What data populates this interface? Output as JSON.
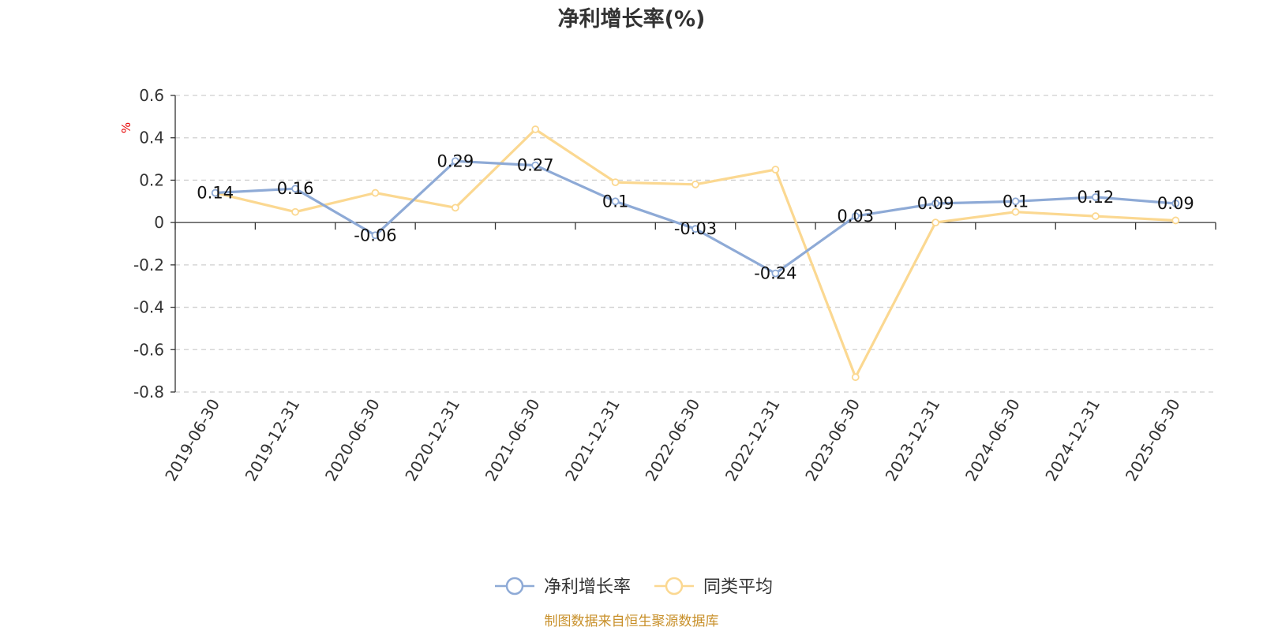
{
  "chart_data": {
    "type": "line",
    "title": "净利增长率(%)",
    "ylabel": "%",
    "ylim": [
      -0.8,
      0.6
    ],
    "y_ticks": [
      "0.6",
      "0.4",
      "0.2",
      "0",
      "-0.2",
      "-0.4",
      "-0.6",
      "-0.8"
    ],
    "y_tick_values": [
      0.6,
      0.4,
      0.2,
      0,
      -0.2,
      -0.4,
      -0.6,
      -0.8
    ],
    "categories": [
      "2019-06-30",
      "2019-12-31",
      "2020-06-30",
      "2020-12-31",
      "2021-06-30",
      "2021-12-31",
      "2022-06-30",
      "2022-12-31",
      "2023-06-30",
      "2023-12-31",
      "2024-06-30",
      "2024-12-31",
      "2025-06-30"
    ],
    "series": [
      {
        "name": "净利增长率",
        "color": "#8eaad6",
        "values": [
          0.14,
          0.16,
          -0.06,
          0.29,
          0.27,
          0.1,
          -0.03,
          -0.24,
          0.03,
          0.09,
          0.1,
          0.12,
          0.09
        ],
        "labels": [
          "0.14",
          "0.16",
          "-0.06",
          "0.29",
          "0.27",
          "0.1",
          "-0.03",
          "-0.24",
          "0.03",
          "0.09",
          "0.1",
          "0.12",
          "0.09"
        ]
      },
      {
        "name": "同类平均",
        "color": "#fbd891",
        "values": [
          0.14,
          0.05,
          0.14,
          0.07,
          0.44,
          0.19,
          0.18,
          0.25,
          -0.73,
          0.0,
          0.05,
          0.03,
          0.01
        ]
      }
    ],
    "grid": true,
    "grid_style": "dashed",
    "legend_position": "bottom-center"
  },
  "footer": {
    "source": "制图数据来自恒生聚源数据库"
  }
}
